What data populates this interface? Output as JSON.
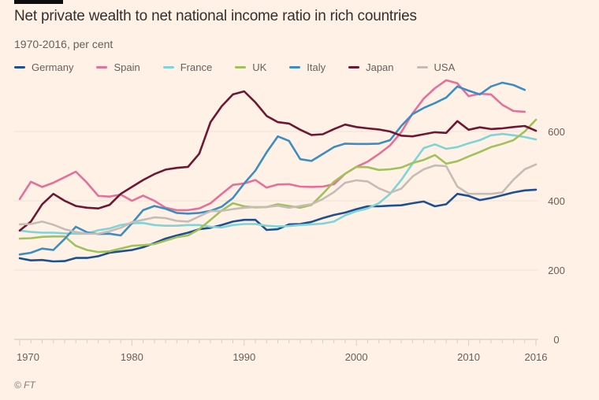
{
  "header": {
    "title": "Net private wealth to net national income ratio in rich countries",
    "subtitle": "1970-2016, per cent"
  },
  "source": "© FT",
  "chart_data": {
    "type": "line",
    "title": "Net private wealth to net national income ratio in rich countries",
    "subtitle": "1970-2016, per cent",
    "xlabel": "",
    "ylabel": "",
    "xlim": [
      1970,
      2016
    ],
    "ylim": [
      0,
      700
    ],
    "x_ticks": [
      "1970",
      "1980",
      "1990",
      "2000",
      "2010",
      "2016"
    ],
    "y_ticks": [
      "0",
      "200",
      "400",
      "600"
    ],
    "grid": "horizontal",
    "legend_position": "top",
    "x": [
      1970,
      1971,
      1972,
      1973,
      1974,
      1975,
      1976,
      1977,
      1978,
      1979,
      1980,
      1981,
      1982,
      1983,
      1984,
      1985,
      1986,
      1987,
      1988,
      1989,
      1990,
      1991,
      1992,
      1993,
      1994,
      1995,
      1996,
      1997,
      1998,
      1999,
      2000,
      2001,
      2002,
      2003,
      2004,
      2005,
      2006,
      2007,
      2008,
      2009,
      2010,
      2011,
      2012,
      2013,
      2014,
      2015,
      2016
    ],
    "series": [
      {
        "name": "Germany",
        "color": "#1d4f91",
        "values": [
          234,
          228,
          229,
          225,
          226,
          235,
          235,
          240,
          250,
          254,
          258,
          266,
          278,
          291,
          300,
          308,
          318,
          322,
          330,
          340,
          345,
          345,
          316,
          318,
          332,
          333,
          339,
          350,
          359,
          366,
          376,
          384,
          384,
          386,
          387,
          393,
          398,
          384,
          390,
          420,
          414,
          402,
          408,
          416,
          424,
          430,
          432
        ]
      },
      {
        "name": "Spain",
        "color": "#e5709a",
        "values": [
          405,
          455,
          440,
          452,
          468,
          484,
          452,
          414,
          412,
          418,
          400,
          415,
          400,
          380,
          373,
          373,
          378,
          393,
          420,
          446,
          450,
          460,
          438,
          447,
          448,
          441,
          440,
          441,
          448,
          478,
          498,
          513,
          535,
          560,
          598,
          652,
          695,
          725,
          748,
          739,
          702,
          709,
          707,
          677,
          659,
          657,
          null
        ]
      },
      {
        "name": "France",
        "color": "#7fd4d8",
        "values": [
          314,
          310,
          308,
          308,
          306,
          305,
          305,
          315,
          320,
          330,
          335,
          336,
          330,
          328,
          328,
          330,
          330,
          325,
          323,
          330,
          333,
          333,
          328,
          326,
          327,
          330,
          332,
          334,
          340,
          358,
          370,
          378,
          393,
          420,
          460,
          507,
          552,
          563,
          550,
          555,
          566,
          575,
          589,
          593,
          589,
          584,
          577
        ]
      },
      {
        "name": "UK",
        "color": "#a1c15a",
        "values": [
          291,
          292,
          296,
          297,
          297,
          270,
          258,
          252,
          254,
          262,
          270,
          272,
          275,
          285,
          295,
          300,
          318,
          345,
          372,
          393,
          384,
          381,
          382,
          390,
          385,
          380,
          388,
          420,
          455,
          478,
          498,
          497,
          489,
          491,
          496,
          509,
          518,
          532,
          507,
          514,
          528,
          541,
          555,
          564,
          575,
          600,
          634
        ]
      },
      {
        "name": "Italy",
        "color": "#3b8dc4",
        "values": [
          245,
          250,
          262,
          258,
          290,
          325,
          309,
          304,
          305,
          300,
          335,
          373,
          385,
          377,
          365,
          363,
          365,
          371,
          383,
          408,
          450,
          487,
          540,
          586,
          573,
          520,
          515,
          535,
          555,
          565,
          564,
          564,
          565,
          575,
          616,
          650,
          668,
          682,
          698,
          730,
          718,
          707,
          730,
          741,
          734,
          720,
          null
        ]
      },
      {
        "name": "Japan",
        "color": "#6d1733",
        "values": [
          314,
          340,
          390,
          420,
          400,
          385,
          380,
          378,
          388,
          420,
          440,
          460,
          477,
          490,
          495,
          498,
          536,
          627,
          673,
          707,
          716,
          684,
          645,
          627,
          623,
          605,
          590,
          592,
          607,
          620,
          613,
          609,
          606,
          600,
          588,
          586,
          592,
          598,
          596,
          630,
          605,
          612,
          607,
          609,
          613,
          616,
          602
        ]
      },
      {
        "name": "USA",
        "color": "#c4bdb5",
        "values": [
          332,
          333,
          340,
          331,
          318,
          310,
          305,
          305,
          312,
          322,
          338,
          345,
          352,
          350,
          342,
          340,
          355,
          370,
          371,
          376,
          380,
          382,
          382,
          386,
          380,
          385,
          390,
          405,
          425,
          452,
          459,
          456,
          436,
          423,
          435,
          470,
          491,
          502,
          500,
          441,
          420,
          420,
          420,
          424,
          461,
          491,
          505
        ]
      }
    ]
  }
}
